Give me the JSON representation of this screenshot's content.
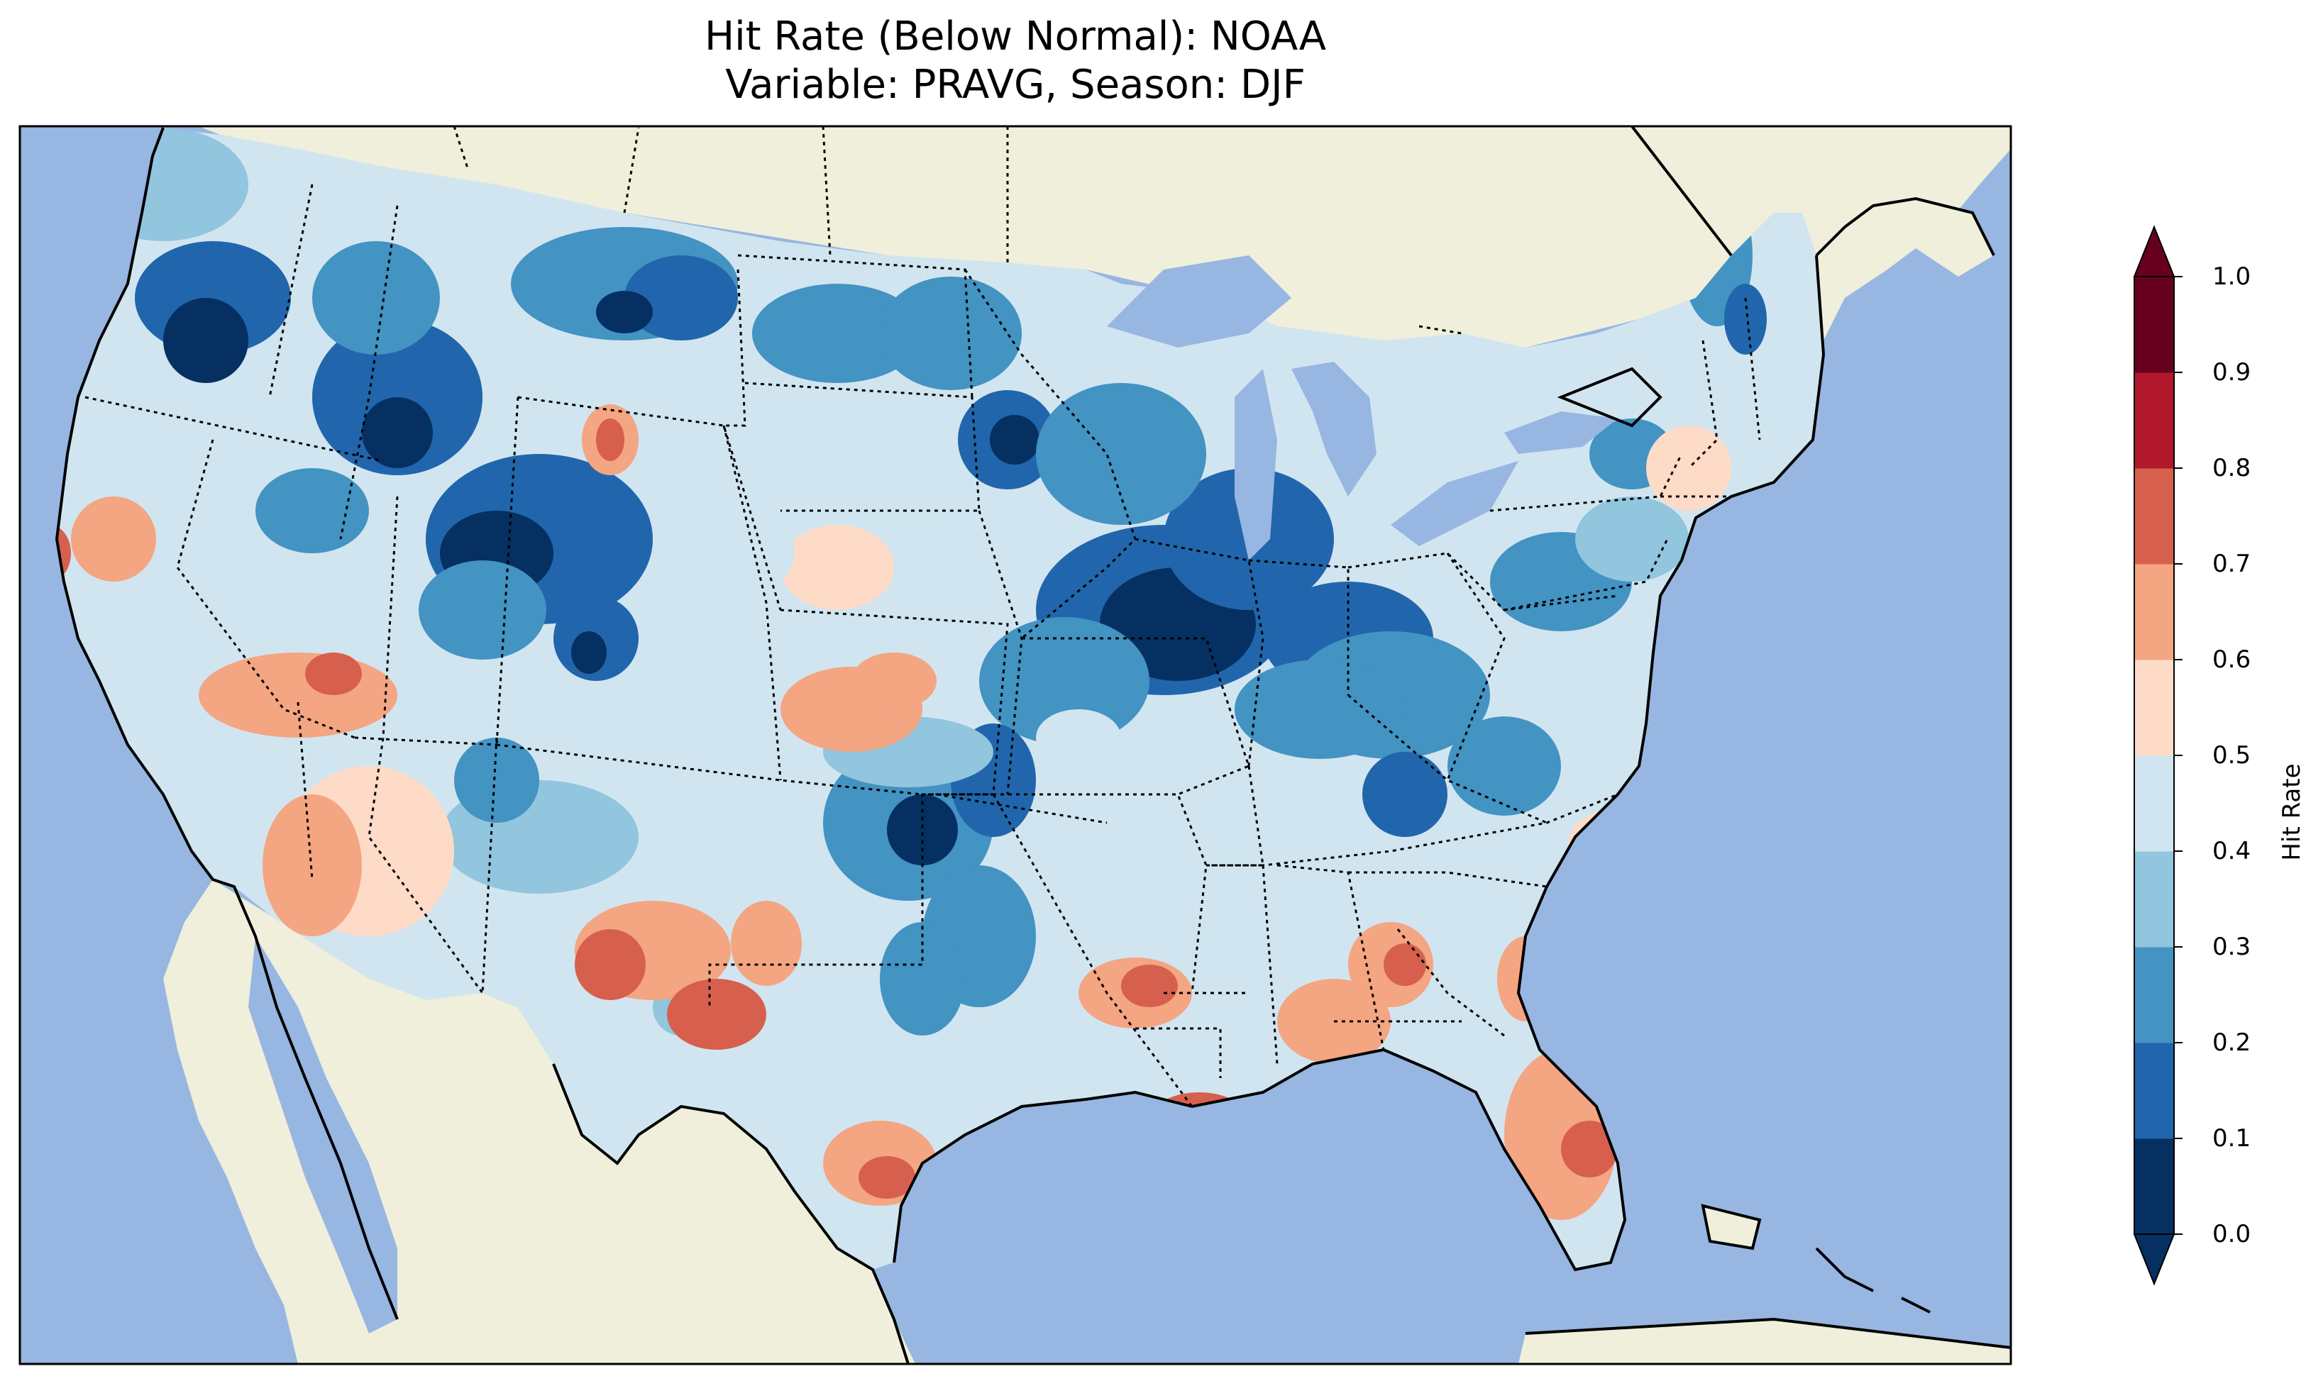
{
  "title": {
    "line1": "Hit Rate (Below Normal): NOAA",
    "line2": "Variable: PRAVG, Season: DJF"
  },
  "colorbar": {
    "label": "Hit Rate",
    "ticks": [
      "0.0",
      "0.1",
      "0.2",
      "0.3",
      "0.4",
      "0.5",
      "0.6",
      "0.7",
      "0.8",
      "0.9",
      "1.0"
    ],
    "colors": [
      "#053061",
      "#2166ac",
      "#4393c3",
      "#92c5de",
      "#d1e5f0",
      "#fddbc7",
      "#f4a582",
      "#d6604d",
      "#b2182b",
      "#67001f"
    ],
    "extend": "both"
  },
  "map": {
    "ocean_color": "#97b6e1",
    "land_color": "#efefdb",
    "variable": "PRAVG",
    "season": "DJF"
  }
}
